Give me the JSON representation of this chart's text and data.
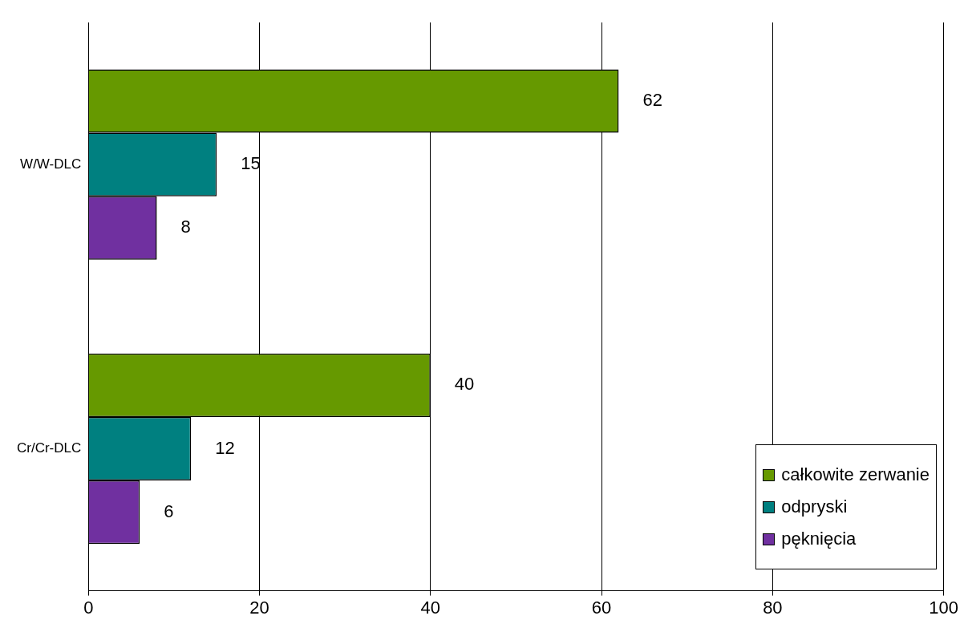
{
  "chart_data": {
    "type": "bar",
    "orientation": "horizontal",
    "categories": [
      "W/W-DLC",
      "Cr/Cr-DLC"
    ],
    "series": [
      {
        "name": "całkowite zerwanie",
        "color": "#669900",
        "values": [
          62,
          40
        ]
      },
      {
        "name": "odpryski",
        "color": "#008080",
        "values": [
          15,
          12
        ]
      },
      {
        "name": "pęknięcia",
        "color": "#7030a0",
        "values": [
          8,
          6
        ]
      }
    ],
    "xlim": [
      0,
      100
    ],
    "xticks": [
      0,
      20,
      40,
      60,
      80,
      100
    ],
    "grid": "x",
    "legend": "bottom right",
    "data_labels": true
  }
}
